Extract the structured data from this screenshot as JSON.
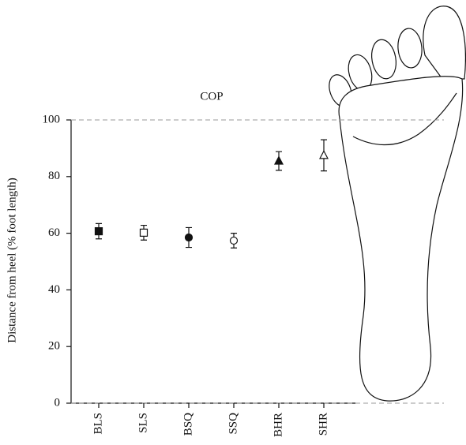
{
  "chart_data": {
    "type": "errorbar",
    "title": "COP",
    "y_label": "Distance from heel (% foot length)",
    "categories": [
      "BLS",
      "SLS",
      "BSQ",
      "SSQ",
      "BHR",
      "SHR"
    ],
    "values": [
      60.7,
      60.2,
      58.5,
      57.4,
      85.5,
      87.5
    ],
    "errors": [
      2.7,
      2.6,
      3.5,
      2.6,
      3.3,
      5.5
    ],
    "markers": [
      "square-filled",
      "square-open",
      "circle-filled",
      "circle-open",
      "triangle-filled",
      "triangle-open"
    ],
    "color": "#111111",
    "ylim": [
      0,
      100
    ],
    "yticks": [
      0,
      20,
      40,
      60,
      80,
      100
    ],
    "hlines": [
      0,
      100
    ]
  }
}
